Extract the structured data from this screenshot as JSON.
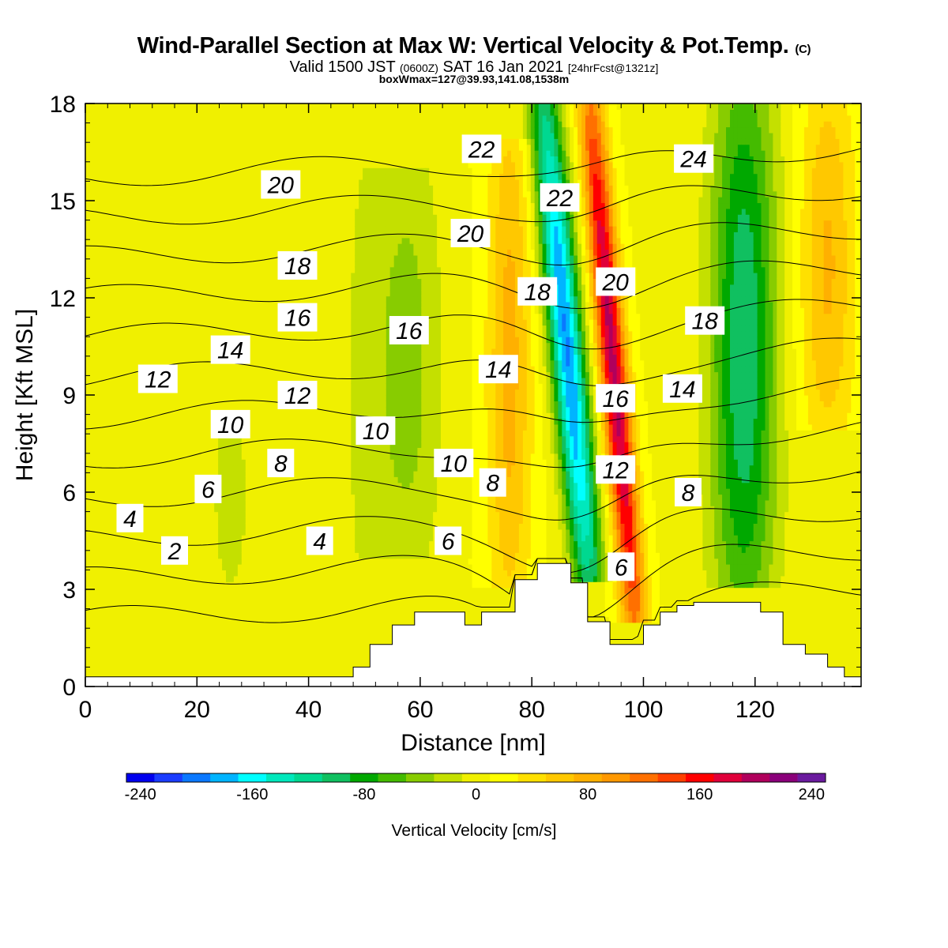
{
  "title": {
    "main": "Wind-Parallel Section at Max W: Vertical Velocity & Pot.Temp.",
    "copyright": "(C)",
    "valid_a": "Valid 1500 JST",
    "valid_z": "(0600Z)",
    "valid_b": "SAT 16 Jan 2021",
    "valid_fcst": "[24hrFcst@1321z]",
    "box": "boxWmax=127@39.93,141.08,1538m"
  },
  "chart_data": {
    "type": "heatmap",
    "xlabel": "Distance [nm]",
    "ylabel": "Height [Kft MSL]",
    "xlim": [
      0,
      139
    ],
    "ylim": [
      0,
      18
    ],
    "x_ticks": [
      0,
      20,
      40,
      60,
      80,
      100,
      120
    ],
    "y_ticks": [
      0,
      3,
      6,
      9,
      12,
      15,
      18
    ],
    "colorbar": {
      "label": "Vertical Velocity [cm/s]",
      "range": [
        -250,
        250
      ],
      "tick_labels": [
        -240,
        -160,
        -80,
        0,
        80,
        160,
        240
      ],
      "bins": 25,
      "colors": [
        "#0000ee",
        "#1a3cff",
        "#0a78ff",
        "#00b4ff",
        "#00ffff",
        "#00e8bc",
        "#00d890",
        "#10c060",
        "#00a800",
        "#44bb00",
        "#88cc00",
        "#c4e000",
        "#f0f000",
        "#ffff00",
        "#ffe000",
        "#ffc800",
        "#ffb000",
        "#ff9800",
        "#ff7000",
        "#ff4000",
        "#ff0000",
        "#e0003a",
        "#b0005c",
        "#8a007a",
        "#6a1a9e"
      ]
    },
    "terrain_kft": [
      [
        0,
        0.3
      ],
      [
        48,
        0.3
      ],
      [
        48,
        0.6
      ],
      [
        51,
        0.6
      ],
      [
        51,
        1.3
      ],
      [
        55,
        1.3
      ],
      [
        55,
        1.9
      ],
      [
        59,
        1.9
      ],
      [
        59,
        2.3
      ],
      [
        68,
        2.3
      ],
      [
        68,
        1.9
      ],
      [
        71,
        1.9
      ],
      [
        71,
        2.3
      ],
      [
        77,
        2.3
      ],
      [
        77,
        3.3
      ],
      [
        81,
        3.3
      ],
      [
        81,
        3.8
      ],
      [
        87,
        3.8
      ],
      [
        87,
        3.2
      ],
      [
        90,
        3.2
      ],
      [
        90,
        2.0
      ],
      [
        94,
        2.0
      ],
      [
        94,
        1.3
      ],
      [
        100,
        1.3
      ],
      [
        100,
        1.9
      ],
      [
        103,
        1.9
      ],
      [
        103,
        2.3
      ],
      [
        106,
        2.3
      ],
      [
        106,
        2.5
      ],
      [
        109,
        2.5
      ],
      [
        109,
        2.6
      ],
      [
        121,
        2.6
      ],
      [
        121,
        2.3
      ],
      [
        125,
        2.3
      ],
      [
        125,
        1.3
      ],
      [
        129,
        1.3
      ],
      [
        129,
        1.0
      ],
      [
        133,
        1.0
      ],
      [
        133,
        0.6
      ],
      [
        136,
        0.6
      ],
      [
        136,
        0.3
      ],
      [
        139,
        0.3
      ]
    ],
    "w_features": [
      {
        "x": 86,
        "y": 11,
        "amplitude": -200,
        "width_nm": 3.0,
        "tilt": -0.55,
        "y_range": [
          3.2,
          18
        ]
      },
      {
        "x": 94,
        "y": 11,
        "amplitude": 190,
        "width_nm": 2.5,
        "tilt": -0.5,
        "y_range": [
          2.0,
          18
        ]
      },
      {
        "x": 118,
        "y": 11,
        "amplitude": -115,
        "width_nm": 6,
        "y_range": [
          3,
          18
        ]
      },
      {
        "x": 76,
        "y": 11,
        "amplitude": 70,
        "width_nm": 4,
        "y_range": [
          3,
          17
        ]
      },
      {
        "x": 133,
        "y": 14,
        "amplitude": 65,
        "width_nm": 5,
        "y_range": [
          8,
          18
        ]
      },
      {
        "x": 58,
        "y": 8,
        "amplitude": -45,
        "width_nm": 6,
        "y_range": [
          4,
          16
        ]
      },
      {
        "x": 26,
        "y": 6,
        "amplitude": -20,
        "width_nm": 8,
        "y_range": [
          0.3,
          11.5
        ]
      },
      {
        "x": 50,
        "y": 10,
        "amplitude": -20,
        "width_nm": 5,
        "y_range": [
          0.3,
          18
        ]
      }
    ],
    "theta_contours": [
      2,
      4,
      6,
      8,
      10,
      12,
      14,
      16,
      18,
      20,
      22,
      24
    ],
    "contour_labels": [
      {
        "x": 8,
        "y": 5.2,
        "label": "4"
      },
      {
        "x": 16,
        "y": 4.2,
        "label": "2"
      },
      {
        "x": 22,
        "y": 6.1,
        "label": "6"
      },
      {
        "x": 13,
        "y": 9.5,
        "label": "12"
      },
      {
        "x": 26,
        "y": 10.4,
        "label": "14"
      },
      {
        "x": 26,
        "y": 8.1,
        "label": "10"
      },
      {
        "x": 35,
        "y": 6.9,
        "label": "8"
      },
      {
        "x": 35,
        "y": 15.5,
        "label": "20"
      },
      {
        "x": 38,
        "y": 13.0,
        "label": "18"
      },
      {
        "x": 38,
        "y": 11.4,
        "label": "16"
      },
      {
        "x": 38,
        "y": 9.0,
        "label": "12"
      },
      {
        "x": 42,
        "y": 4.5,
        "label": "4"
      },
      {
        "x": 52,
        "y": 7.9,
        "label": "10"
      },
      {
        "x": 58,
        "y": 11.0,
        "label": "16"
      },
      {
        "x": 65,
        "y": 4.5,
        "label": "6"
      },
      {
        "x": 66,
        "y": 6.9,
        "label": "10"
      },
      {
        "x": 69,
        "y": 14.0,
        "label": "20"
      },
      {
        "x": 71,
        "y": 16.6,
        "label": "22"
      },
      {
        "x": 73,
        "y": 6.3,
        "label": "8"
      },
      {
        "x": 74,
        "y": 9.8,
        "label": "14"
      },
      {
        "x": 81,
        "y": 12.2,
        "label": "18"
      },
      {
        "x": 85,
        "y": 15.1,
        "label": "22"
      },
      {
        "x": 95,
        "y": 12.5,
        "label": "20"
      },
      {
        "x": 95,
        "y": 8.9,
        "label": "16"
      },
      {
        "x": 95,
        "y": 6.7,
        "label": "12"
      },
      {
        "x": 96,
        "y": 3.7,
        "label": "6"
      },
      {
        "x": 107,
        "y": 9.2,
        "label": "14"
      },
      {
        "x": 108,
        "y": 6.0,
        "label": "8"
      },
      {
        "x": 111,
        "y": 11.3,
        "label": "18"
      },
      {
        "x": 109,
        "y": 16.3,
        "label": "24"
      }
    ]
  }
}
